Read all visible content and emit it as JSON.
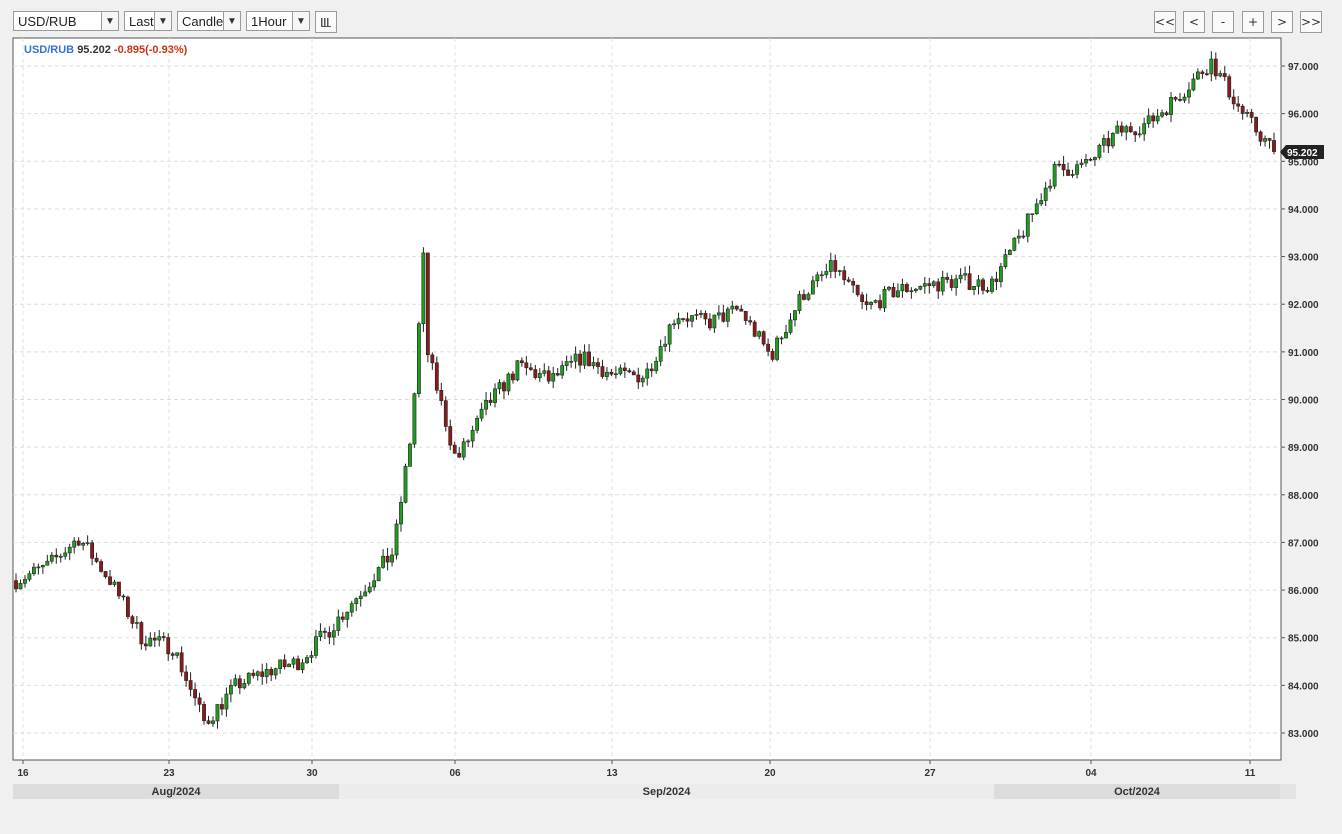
{
  "toolbar": {
    "symbol": "USD/RUB",
    "price_field": "Last",
    "chart_style": "Candle",
    "interval": "1Hour",
    "nav": [
      "<<",
      "<",
      "-",
      "+",
      ">",
      ">>"
    ]
  },
  "legend": {
    "symbol": "USD/RUB",
    "last": "95.202",
    "change": "-0.895(-0.93%)"
  },
  "price_tag": "95.202",
  "y_ticks": [
    "83.000",
    "84.000",
    "85.000",
    "86.000",
    "87.000",
    "88.000",
    "89.000",
    "90.000",
    "91.000",
    "92.000",
    "93.000",
    "94.000",
    "95.000",
    "96.000",
    "97.000"
  ],
  "x_ticks": [
    "16",
    "23",
    "30",
    "06",
    "13",
    "20",
    "27",
    "04",
    "11"
  ],
  "months": [
    "Aug/2024",
    "Sep/2024",
    "Oct/2024"
  ],
  "colors": {
    "up": "#1e9e1e",
    "down": "#8b1a1a",
    "grid": "#dddddd",
    "symbol": "#3b6fd6",
    "change": "#cc3311",
    "tag_bg": "#222222"
  },
  "chart_data": {
    "type": "candlestick",
    "ylim": [
      82.6,
      97.6
    ],
    "x": [
      "Aug 16",
      "Aug 19",
      "Aug 20",
      "Aug 21",
      "Aug 22",
      "Aug 23",
      "Aug 26",
      "Aug 27",
      "Aug 28",
      "Aug 29",
      "Aug 30",
      "Sep 02",
      "Sep 03",
      "Sep 04",
      "Sep 05",
      "Sep 06",
      "Sep 09",
      "Sep 10",
      "Sep 11",
      "Sep 12",
      "Sep 13",
      "Sep 16",
      "Sep 17",
      "Sep 18",
      "Sep 19",
      "Sep 20",
      "Sep 23",
      "Sep 24",
      "Sep 25",
      "Sep 26",
      "Sep 27",
      "Sep 30",
      "Oct 01",
      "Oct 02",
      "Oct 03",
      "Oct 04",
      "Oct 07",
      "Oct 08",
      "Oct 09",
      "Oct 10",
      "Oct 11"
    ],
    "close": [
      86.2,
      86.5,
      87.1,
      86.2,
      85.0,
      84.8,
      83.2,
      84.0,
      84.3,
      84.5,
      85.2,
      86.0,
      86.8,
      91.2,
      88.7,
      89.9,
      90.7,
      90.4,
      90.9,
      90.5,
      90.5,
      91.8,
      91.6,
      91.9,
      90.9,
      92.2,
      92.8,
      91.9,
      92.3,
      92.4,
      92.5,
      92.4,
      93.5,
      94.8,
      94.9,
      95.6,
      95.8,
      96.4,
      97.1,
      96.0,
      95.2
    ],
    "series": [
      {
        "name": "USD/RUB",
        "last": 95.202
      }
    ]
  }
}
